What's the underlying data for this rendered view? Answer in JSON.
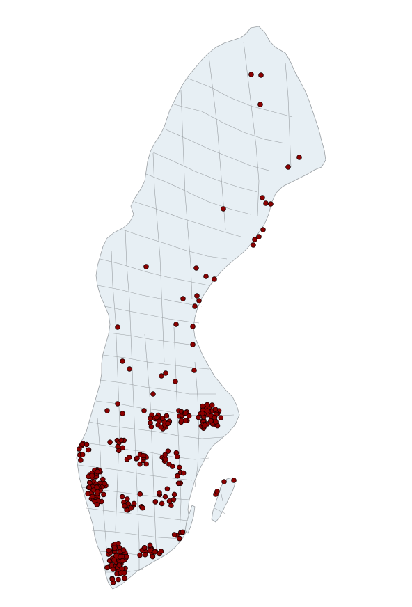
{
  "map": {
    "country": "Sweden",
    "land_color": "#e7eff4",
    "border_color": "#9a9fa3",
    "point_color": "#8b0000",
    "point_outline_color": "#1a0000",
    "background_color": "#ffffff"
  }
}
